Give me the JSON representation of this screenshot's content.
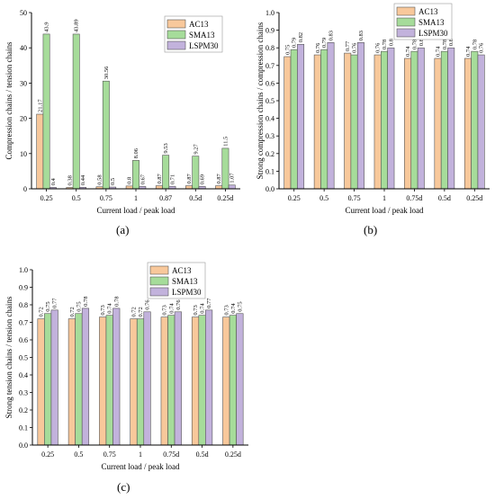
{
  "colors": {
    "AC13": "#f8c89b",
    "SMA13": "#a6dc9a",
    "LSPM30": "#c2b2dc",
    "axis": "#000000"
  },
  "panel_labels": [
    "(a)",
    "(b)",
    "(c)"
  ],
  "chart_data": [
    {
      "type": "bar",
      "ylabel": "Compression chains / tension chains",
      "xlabel": "Current load / peak load",
      "categories": [
        "0.25",
        "0.5",
        "0.75",
        "1",
        "0.87",
        "0.5d",
        "0.25d"
      ],
      "ylim": [
        0,
        50
      ],
      "yticks": [
        "0",
        "10",
        "20",
        "30",
        "40",
        "50"
      ],
      "legend": "top-right",
      "grid": false,
      "series": [
        {
          "name": "AC13",
          "values": [
            21.17,
            0.38,
            0.58,
            0.8,
            0.87,
            0.87,
            0.87
          ],
          "labels": [
            "21.17",
            "0.38",
            "0.58",
            "0.8",
            "0.87",
            "0.87",
            "0.87"
          ]
        },
        {
          "name": "SMA13",
          "values": [
            43.9,
            43.89,
            30.56,
            8.06,
            9.53,
            9.27,
            11.5
          ],
          "labels": [
            "43.9",
            "43.89",
            "30.56",
            "8.06",
            "9.53",
            "9.27",
            "11.5"
          ]
        },
        {
          "name": "LSPM30",
          "values": [
            0.4,
            0.44,
            0.5,
            0.67,
            0.71,
            0.69,
            1.07
          ],
          "labels": [
            "0.4",
            "0.44",
            "0.5",
            "0.67",
            "0.71",
            "0.69",
            "1.07"
          ]
        }
      ]
    },
    {
      "type": "bar",
      "ylabel": "Strong compression chains / compression chains",
      "xlabel": "Current load / peak load",
      "categories": [
        "0.25",
        "0.5",
        "0.75",
        "1",
        "0.75d",
        "0.5d",
        "0.25d"
      ],
      "ylim": [
        0,
        1.0
      ],
      "yticks": [
        "0.0",
        "0.1",
        "0.2",
        "0.3",
        "0.4",
        "0.5",
        "0.6",
        "0.7",
        "0.8",
        "0.9",
        "1.0"
      ],
      "legend": "top-right",
      "grid": false,
      "series": [
        {
          "name": "AC13",
          "values": [
            0.75,
            0.76,
            0.77,
            0.76,
            0.74,
            0.74,
            0.74
          ],
          "labels": [
            "0.75",
            "0.76",
            "0.77",
            "0.76",
            "0.74",
            "0.74",
            "0.74"
          ]
        },
        {
          "name": "SMA13",
          "values": [
            0.79,
            0.79,
            0.76,
            0.78,
            0.78,
            0.78,
            0.78
          ],
          "labels": [
            "0.79",
            "0.79",
            "0.76",
            "0.78",
            "0.78",
            "0.78",
            "0.78"
          ]
        },
        {
          "name": "LSPM30",
          "values": [
            0.82,
            0.83,
            0.83,
            0.8,
            0.8,
            0.8,
            0.76
          ],
          "labels": [
            "0.82",
            "0.83",
            "0.83",
            "0.8",
            "0.8",
            "0.8",
            "0.76"
          ]
        }
      ]
    },
    {
      "type": "bar",
      "ylabel": "Strong tension chains / tension chains",
      "xlabel": "Current load / peak load",
      "categories": [
        "0.25",
        "0.5",
        "0.75",
        "1",
        "0.75d",
        "0.5d",
        "0.25d"
      ],
      "ylim": [
        0,
        1.0
      ],
      "yticks": [
        "0.0",
        "0.1",
        "0.2",
        "0.3",
        "0.4",
        "0.5",
        "0.6",
        "0.7",
        "0.8",
        "0.9",
        "1.0"
      ],
      "legend": "top-center",
      "grid": false,
      "series": [
        {
          "name": "AC13",
          "values": [
            0.72,
            0.72,
            0.73,
            0.72,
            0.73,
            0.73,
            0.73
          ],
          "labels": [
            "0.72",
            "0.72",
            "0.73",
            "0.72",
            "0.73",
            "0.73",
            "0.73"
          ]
        },
        {
          "name": "SMA13",
          "values": [
            0.75,
            0.75,
            0.74,
            0.72,
            0.74,
            0.74,
            0.74
          ],
          "labels": [
            "0.75",
            "0.75",
            "0.74",
            "0.72",
            "0.74",
            "0.74",
            "0.74"
          ]
        },
        {
          "name": "LSPM30",
          "values": [
            0.77,
            0.78,
            0.78,
            0.76,
            0.76,
            0.77,
            0.75
          ],
          "labels": [
            "0.77",
            "0.78",
            "0.78",
            "0.76",
            "0.76",
            "0.77",
            "0.75"
          ]
        }
      ]
    }
  ]
}
